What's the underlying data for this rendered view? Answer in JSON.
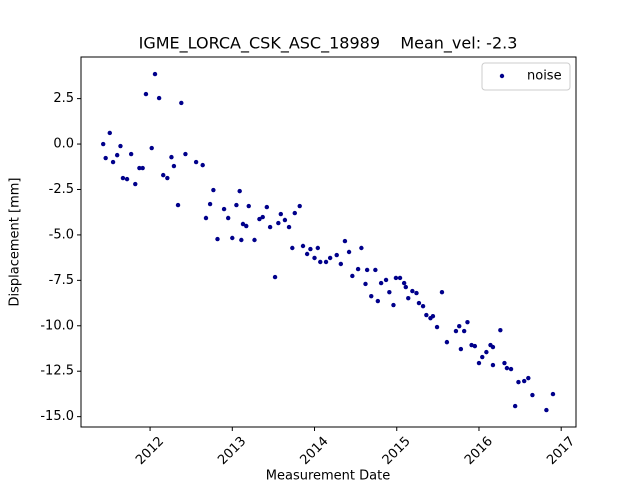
{
  "chart_data": {
    "type": "scatter",
    "title": "IGME_LORCA_CSK_ASC_18989    Mean_vel: -2.3",
    "xlabel": "Measurement Date",
    "ylabel": "Displacement [mm]",
    "legend_loc": "upper right",
    "series": [
      {
        "name": "noise",
        "color": "#00008b",
        "x": [
          2011.43,
          2011.46,
          2011.51,
          2011.55,
          2011.6,
          2011.64,
          2011.67,
          2011.72,
          2011.77,
          2011.82,
          2011.87,
          2011.91,
          2011.95,
          2012.02,
          2012.06,
          2012.11,
          2012.16,
          2012.21,
          2012.26,
          2012.29,
          2012.34,
          2012.38,
          2012.43,
          2012.56,
          2012.64,
          2012.68,
          2012.73,
          2012.77,
          2012.82,
          2012.9,
          2012.95,
          2013.0,
          2013.05,
          2013.09,
          2013.11,
          2013.13,
          2013.17,
          2013.2,
          2013.27,
          2013.33,
          2013.37,
          2013.42,
          2013.46,
          2013.52,
          2013.56,
          2013.59,
          2013.64,
          2013.69,
          2013.73,
          2013.76,
          2013.82,
          2013.86,
          2013.91,
          2013.95,
          2014.0,
          2014.04,
          2014.07,
          2014.14,
          2014.19,
          2014.27,
          2014.32,
          2014.37,
          2014.42,
          2014.46,
          2014.53,
          2014.57,
          2014.62,
          2014.64,
          2014.69,
          2014.74,
          2014.77,
          2014.81,
          2014.87,
          2014.91,
          2014.96,
          2014.99,
          2015.04,
          2015.09,
          2015.11,
          2015.14,
          2015.19,
          2015.24,
          2015.27,
          2015.32,
          2015.36,
          2015.41,
          2015.44,
          2015.49,
          2015.55,
          2015.61,
          2015.72,
          2015.76,
          2015.78,
          2015.82,
          2015.86,
          2015.91,
          2015.95,
          2016.0,
          2016.04,
          2016.09,
          2016.14,
          2016.17,
          2016.17,
          2016.26,
          2016.31,
          2016.34,
          2016.39,
          2016.44,
          2016.48,
          2016.55,
          2016.6,
          2016.65,
          2016.82,
          2016.9
        ],
        "values": [
          0.0,
          -0.77,
          0.61,
          -0.99,
          -0.61,
          -0.11,
          -1.87,
          -1.93,
          -0.55,
          -2.2,
          -1.32,
          -1.32,
          2.75,
          -0.22,
          3.85,
          2.53,
          -1.71,
          -1.87,
          -0.72,
          -1.21,
          -3.36,
          2.26,
          -0.55,
          -0.99,
          -1.16,
          -4.07,
          -3.3,
          -2.53,
          -5.23,
          -3.58,
          -4.07,
          -5.17,
          -3.36,
          -2.59,
          -5.28,
          -4.4,
          -4.51,
          -3.41,
          -5.28,
          -4.13,
          -4.02,
          -3.47,
          -4.57,
          -7.32,
          -4.35,
          -3.85,
          -4.18,
          -4.57,
          -5.72,
          -3.8,
          -3.41,
          -5.61,
          -6.05,
          -5.78,
          -6.27,
          -5.72,
          -6.49,
          -6.49,
          -6.27,
          -6.11,
          -6.6,
          -5.34,
          -5.94,
          -7.26,
          -6.88,
          -5.72,
          -7.7,
          -6.93,
          -8.37,
          -6.93,
          -8.64,
          -7.65,
          -7.48,
          -8.15,
          -8.86,
          -7.37,
          -7.37,
          -7.65,
          -7.87,
          -8.48,
          -8.09,
          -8.2,
          -8.75,
          -8.92,
          -9.41,
          -9.58,
          -9.47,
          -10.07,
          -8.15,
          -10.9,
          -10.29,
          -10.02,
          -11.28,
          -10.29,
          -9.8,
          -11.06,
          -11.12,
          -12.05,
          -11.72,
          -11.45,
          -11.06,
          -11.17,
          -12.16,
          -10.24,
          -12.05,
          -12.33,
          -12.38,
          -14.42,
          -13.1,
          -13.04,
          -12.88,
          -13.81,
          -14.64,
          -13.76
        ]
      }
    ],
    "xlim": [
      2011.16,
      2017.18
    ],
    "xticks": [
      2012,
      2013,
      2014,
      2015,
      2016,
      2017
    ],
    "ylim": [
      -15.57,
      4.79
    ],
    "yticks": [
      2.5,
      {
        "value": 0,
        "label": "0.0"
      },
      -2.5,
      {
        "value": -5,
        "label": "-5.0"
      },
      -7.5,
      {
        "value": -10,
        "label": "-10.0"
      },
      -12.5,
      {
        "value": -15,
        "label": "-15.0"
      }
    ]
  }
}
